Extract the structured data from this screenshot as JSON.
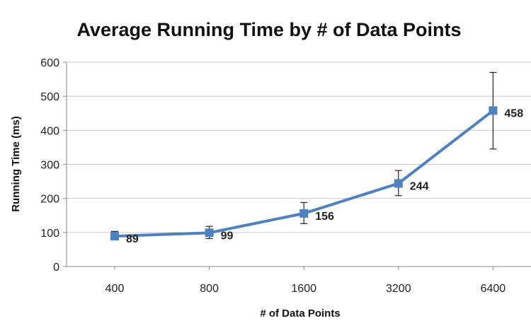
{
  "chart_data": {
    "type": "line",
    "title": "Average Running Time by # of Data Points",
    "xlabel": "# of Data Points",
    "ylabel": "Running Time (ms)",
    "categories": [
      "400",
      "800",
      "1600",
      "3200",
      "6400"
    ],
    "series": [
      {
        "values": [
          89,
          99,
          156,
          244,
          458
        ],
        "error_low": [
          81,
          82,
          126,
          208,
          345
        ],
        "error_high": [
          103,
          118,
          188,
          282,
          570
        ],
        "data_labels": [
          "89",
          "99",
          "156",
          "244",
          "458"
        ]
      }
    ],
    "ylim": [
      0,
      600
    ],
    "yticks": [
      0,
      100,
      200,
      300,
      400,
      500,
      600
    ],
    "grid": true,
    "legend": "none",
    "colors": {
      "line": "#4F81BD",
      "marker": "#4F81BD",
      "grid": "#C8C8C8",
      "axis": "#888888",
      "error_bar": "#222222"
    }
  }
}
